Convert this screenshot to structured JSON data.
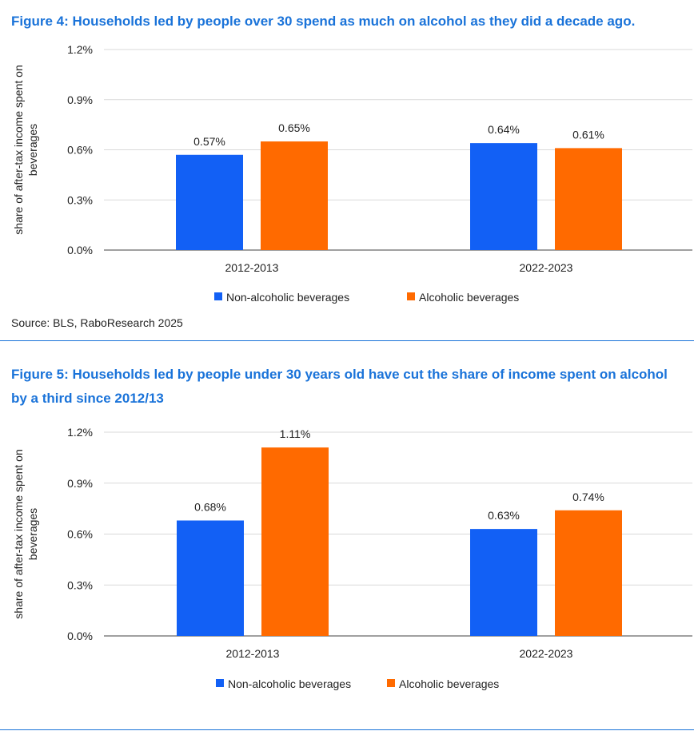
{
  "figures": [
    {
      "title": "Figure 4: Households led by people over 30 spend as much on alcohol as they did a decade ago.",
      "source": "Source: BLS, RaboResearch 2025"
    },
    {
      "title": "Figure 5: Households led by people under 30 years old have cut the share of income spent on alcohol by a third since 2012/13"
    }
  ],
  "colors": {
    "non_alcoholic": "#1260f5",
    "alcoholic": "#ff6a00",
    "title": "#1a73d9",
    "grid": "#d9d9d9",
    "axis": "#808080"
  },
  "chart_data": [
    {
      "type": "bar",
      "title": "Figure 4: Households led by people over 30 spend as much on alcohol as they did a decade ago.",
      "ylabel": "share of after-tax income spent on beverages",
      "xlabel": "",
      "categories": [
        "2012-2013",
        "2022-2023"
      ],
      "series": [
        {
          "name": "Non-alcoholic beverages",
          "values": [
            0.57,
            0.64
          ],
          "labels": [
            "0.57%",
            "0.64%"
          ]
        },
        {
          "name": "Alcoholic beverages",
          "values": [
            0.65,
            0.61
          ],
          "labels": [
            "0.65%",
            "0.61%"
          ]
        }
      ],
      "yticks": [
        "0.0%",
        "0.3%",
        "0.6%",
        "0.9%",
        "1.2%"
      ],
      "ytick_values": [
        0,
        0.3,
        0.6,
        0.9,
        1.2
      ],
      "ylim": [
        0,
        1.2
      ],
      "grid": true,
      "legend": "bottom",
      "source": "Source: BLS, RaboResearch 2025"
    },
    {
      "type": "bar",
      "title": "Figure 5: Households led by people under 30 years old have cut the share of income spent on alcohol by a third since 2012/13",
      "ylabel": "share of after-tax income spent on beverages",
      "xlabel": "",
      "categories": [
        "2012-2013",
        "2022-2023"
      ],
      "series": [
        {
          "name": "Non-alcoholic beverages",
          "values": [
            0.68,
            0.63
          ],
          "labels": [
            "0.68%",
            "0.63%"
          ]
        },
        {
          "name": "Alcoholic beverages",
          "values": [
            1.11,
            0.74
          ],
          "labels": [
            "1.11%",
            "0.74%"
          ]
        }
      ],
      "yticks": [
        "0.0%",
        "0.3%",
        "0.6%",
        "0.9%",
        "1.2%"
      ],
      "ytick_values": [
        0,
        0.3,
        0.6,
        0.9,
        1.2
      ],
      "ylim": [
        0,
        1.2
      ],
      "grid": true,
      "legend": "bottom"
    }
  ]
}
